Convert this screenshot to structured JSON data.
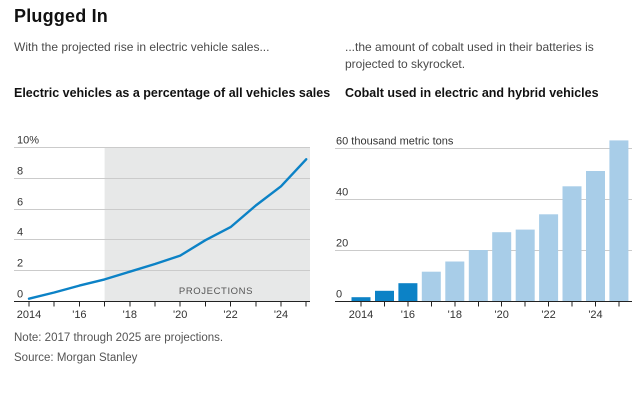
{
  "header": {
    "title": "Plugged In",
    "deck_left": "With the projected rise in electric vehicle sales...",
    "deck_right": "...the amount of cobalt used in their batteries is projected to skyrocket."
  },
  "footer": {
    "note": "Note: 2017 through 2025 are projections.",
    "source": "Source: Morgan Stanley"
  },
  "colors": {
    "accent_blue": "#0c82c6",
    "projection_light_blue": "#a8cde8",
    "projection_shade": "#e7e8e8",
    "gridline": "#cbcbcb",
    "axis": "#222222",
    "tick_text": "#333333",
    "muted_text": "#555555"
  },
  "chart_data": [
    {
      "id": "ev-share",
      "type": "line",
      "title": "Electric vehicles as a percentage of all vehicles sales",
      "x": [
        2014,
        2015,
        2016,
        2017,
        2018,
        2019,
        2020,
        2021,
        2022,
        2023,
        2024,
        2025
      ],
      "values": [
        0.15,
        0.55,
        1.0,
        1.4,
        1.9,
        2.4,
        2.95,
        3.95,
        4.8,
        6.2,
        7.45,
        9.2
      ],
      "ylim": [
        0,
        10
      ],
      "y_ticks": [
        {
          "v": 0,
          "label": "0"
        },
        {
          "v": 2,
          "label": "2"
        },
        {
          "v": 4,
          "label": "4"
        },
        {
          "v": 6,
          "label": "6"
        },
        {
          "v": 8,
          "label": "8"
        },
        {
          "v": 10,
          "label": "10%"
        }
      ],
      "x_tick_labels": [
        {
          "x": 2014,
          "label": "2014"
        },
        {
          "x": 2016,
          "label": "'16"
        },
        {
          "x": 2018,
          "label": "'18"
        },
        {
          "x": 2020,
          "label": "'20"
        },
        {
          "x": 2022,
          "label": "'22"
        },
        {
          "x": 2024,
          "label": "'24"
        }
      ],
      "projection_start": 2017,
      "projection_label": "PROJECTIONS",
      "grid": true,
      "legend": "none"
    },
    {
      "id": "cobalt",
      "type": "bar",
      "title": "Cobalt used in electric and hybrid vehicles",
      "unit_note": "thousand metric tons",
      "x": [
        2014,
        2015,
        2016,
        2017,
        2018,
        2019,
        2020,
        2021,
        2022,
        2023,
        2024,
        2025
      ],
      "values": [
        1.5,
        4,
        7,
        11.5,
        15.5,
        20,
        27,
        28,
        34,
        45,
        51,
        63
      ],
      "actual_through": 2016,
      "ylim": [
        0,
        60
      ],
      "y_ticks": [
        {
          "v": 0,
          "label": "0"
        },
        {
          "v": 20,
          "label": "20"
        },
        {
          "v": 40,
          "label": "40"
        },
        {
          "v": 60,
          "label": "60 thousand metric tons"
        }
      ],
      "x_tick_labels": [
        {
          "x": 2014,
          "label": "2014"
        },
        {
          "x": 2016,
          "label": "'16"
        },
        {
          "x": 2018,
          "label": "'18"
        },
        {
          "x": 2020,
          "label": "'20"
        },
        {
          "x": 2022,
          "label": "'22"
        },
        {
          "x": 2024,
          "label": "'24"
        }
      ],
      "grid": true,
      "legend": "none"
    }
  ]
}
